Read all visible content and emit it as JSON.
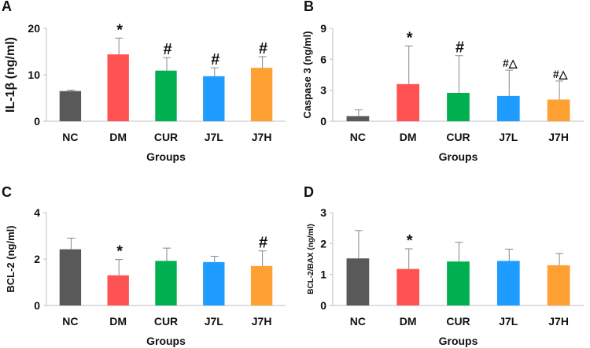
{
  "colors": {
    "NC": "#595959",
    "DM": "#ff5252",
    "CUR": "#00b050",
    "J7L": "#1e9cff",
    "J7H": "#ffa033"
  },
  "chart_data": [
    {
      "panel": "A",
      "type": "bar",
      "categories": [
        "NC",
        "DM",
        "CUR",
        "J7L",
        "J7H"
      ],
      "values": [
        6.5,
        14.4,
        10.9,
        9.7,
        11.5
      ],
      "errors": [
        0.2,
        3.5,
        2.8,
        1.8,
        2.4
      ],
      "markers": [
        "",
        "*",
        "#",
        "#",
        "#"
      ],
      "yticks": [
        "0",
        "10",
        "20"
      ],
      "ylim": [
        0,
        20
      ],
      "xlabel": "Groups",
      "ylabel": "IL-1β (ng/ml)"
    },
    {
      "panel": "B",
      "type": "bar",
      "categories": [
        "NC",
        "DM",
        "CUR",
        "J7L",
        "J7H"
      ],
      "values": [
        0.5,
        3.6,
        2.75,
        2.45,
        2.1
      ],
      "errors": [
        0.6,
        3.7,
        3.6,
        2.5,
        1.8
      ],
      "markers": [
        "",
        "*",
        "#",
        "#△",
        "#△"
      ],
      "yticks": [
        "0",
        "3",
        "6",
        "9"
      ],
      "ylim": [
        0,
        9
      ],
      "xlabel": "Groups",
      "ylabel": "Caspase 3 (ng/ml)"
    },
    {
      "panel": "C",
      "type": "bar",
      "categories": [
        "NC",
        "DM",
        "CUR",
        "J7L",
        "J7H"
      ],
      "values": [
        2.42,
        1.3,
        1.92,
        1.87,
        1.7
      ],
      "errors": [
        0.48,
        0.68,
        0.55,
        0.25,
        0.65
      ],
      "markers": [
        "",
        "*",
        "",
        "",
        "#"
      ],
      "yticks": [
        "0",
        "2",
        "4"
      ],
      "ylim": [
        0,
        4
      ],
      "xlabel": "Groups",
      "ylabel": "BCL-2 (ng/ml)"
    },
    {
      "panel": "D",
      "type": "bar",
      "categories": [
        "NC",
        "DM",
        "CUR",
        "J7L",
        "J7H"
      ],
      "values": [
        1.52,
        1.18,
        1.42,
        1.44,
        1.3
      ],
      "errors": [
        0.9,
        0.65,
        0.62,
        0.38,
        0.38
      ],
      "markers": [
        "",
        "*",
        "",
        "",
        ""
      ],
      "yticks": [
        "0",
        "1",
        "2",
        "3"
      ],
      "ylim": [
        0,
        3
      ],
      "xlabel": "Groups",
      "ylabel": "BCL-2/BAX (ng/ml)"
    }
  ]
}
